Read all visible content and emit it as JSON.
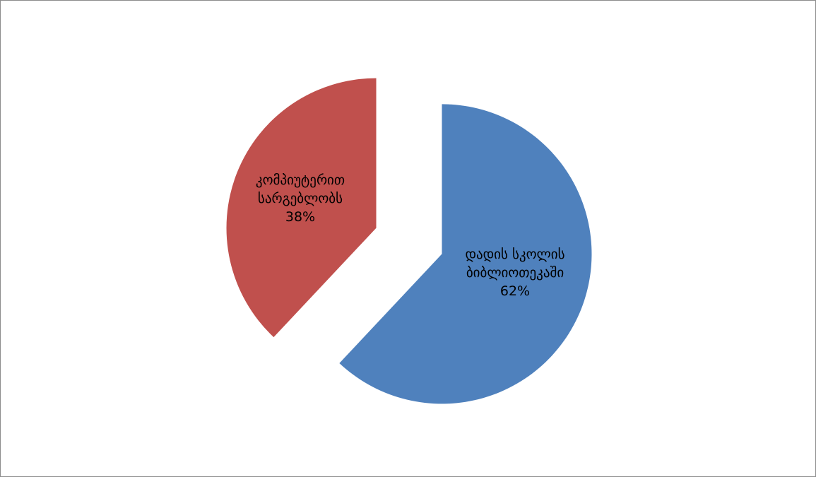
{
  "chart_data": {
    "type": "pie",
    "exploded": true,
    "legend": "none",
    "slices": [
      {
        "label_lines": [
          "დადის სკოლის",
          "ბიბლიოთეკაში"
        ],
        "value": 62,
        "percent_label": "62%",
        "color": "#4f81bd"
      },
      {
        "label_lines": [
          "კომპიუტერით",
          "სარგებლობს"
        ],
        "value": 38,
        "percent_label": "38%",
        "color": "#c0504d"
      }
    ]
  }
}
